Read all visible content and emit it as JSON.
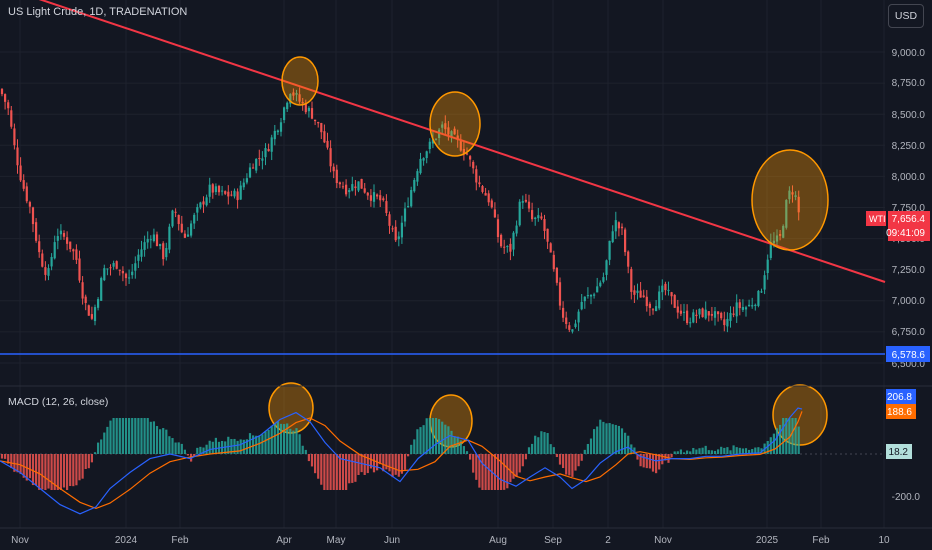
{
  "header": {
    "title": "US Light Crude, 1D, TRADENATION",
    "currency": "USD"
  },
  "price_axis": {
    "ticks": [
      "9,000.0",
      "8,750.0",
      "8,500.0",
      "8,250.0",
      "8,000.0",
      "7,750.0",
      "7,500.0",
      "7,250.0",
      "7,000.0",
      "6,750.0",
      "6,500.0"
    ]
  },
  "price_badge": {
    "symbol": "WTI",
    "price": "7,656.4",
    "countdown": "09:41:09"
  },
  "support_label": "6,578.6",
  "macd": {
    "title": "MACD (12, 26, close)",
    "macd_value": "206.8",
    "signal_value": "188.6",
    "hist_value": "18.2",
    "axis_label": "-200.0"
  },
  "time_axis": {
    "labels": [
      "Nov",
      "2024",
      "Feb",
      "Apr",
      "May",
      "Jun",
      "Aug",
      "Sep",
      "2",
      "Nov",
      "2025",
      "Feb",
      "10"
    ]
  },
  "colors": {
    "background": "#131722",
    "up": "#26a69a",
    "down": "#ef5350",
    "trendline": "#f23645",
    "support": "#2962ff",
    "highlight": "#ff9800",
    "macd_line": "#2962ff",
    "signal_line": "#ff6d00"
  },
  "chart_data": {
    "type": "candlestick",
    "title": "US Light Crude, 1D, TRADENATION",
    "trendline": {
      "from": {
        "date": "2023-10-20",
        "price": 9400
      },
      "to": {
        "date": "2025-02-12",
        "price": 7150
      }
    },
    "support_level": 6578.6,
    "last_price": 7656.4,
    "approx_closes_monthly": [
      {
        "date": "2023-11",
        "close": 7600
      },
      {
        "date": "2023-12",
        "close": 7100
      },
      {
        "date": "2024-01",
        "close": 7700
      },
      {
        "date": "2024-02",
        "close": 7850
      },
      {
        "date": "2024-03",
        "close": 8300
      },
      {
        "date": "2024-04",
        "close": 8700
      },
      {
        "date": "2024-05",
        "close": 7800
      },
      {
        "date": "2024-06",
        "close": 8200
      },
      {
        "date": "2024-07",
        "close": 8400
      },
      {
        "date": "2024-08",
        "close": 7600
      },
      {
        "date": "2024-09",
        "close": 6800
      },
      {
        "date": "2024-10",
        "close": 7350
      },
      {
        "date": "2024-11",
        "close": 6900
      },
      {
        "date": "2024-12",
        "close": 7000
      },
      {
        "date": "2025-01",
        "close": 7650
      }
    ],
    "macd": {
      "params": "12, 26, close",
      "macd": 206.8,
      "signal": 188.6,
      "histogram": 18.2
    },
    "highlight_circles": [
      "2024-04",
      "2024-07",
      "2025-01"
    ]
  }
}
